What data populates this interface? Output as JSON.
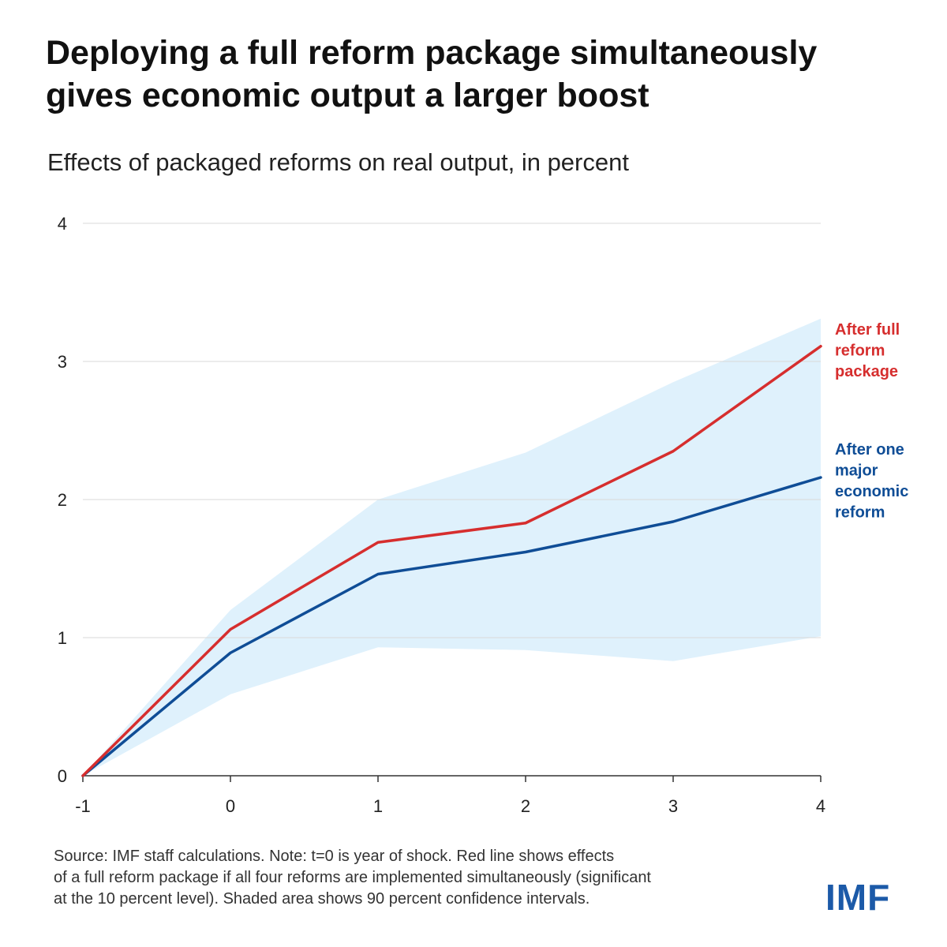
{
  "title_lines": [
    "Deploying a full reform package simultaneously",
    "gives economic output a larger boost"
  ],
  "subtitle": "Effects of packaged reforms on real output, in percent",
  "note_lines": [
    "Source: IMF staff calculations. Note: t=0 is year of shock. Red line shows effects",
    "of a full reform package if all four reforms are implemented simultaneously (significant",
    "at the 10 percent level). Shaded area shows 90 percent confidence intervals."
  ],
  "logo": "IMF",
  "colors": {
    "red": "#d62e2e",
    "blue": "#0f4d96",
    "band": "#dff1fc",
    "grid": "#d9d9d9",
    "axis": "#333333"
  },
  "chart_data": {
    "type": "line",
    "title": "Deploying a full reform package simultaneously gives economic output a larger boost",
    "subtitle": "Effects of packaged reforms on real output, in percent",
    "xlabel": "",
    "ylabel": "",
    "x": [
      -1,
      0,
      1,
      2,
      3,
      4
    ],
    "x_tick_labels": [
      "-1",
      "0",
      "1",
      "2",
      "3",
      "4"
    ],
    "y_tick_labels": [
      "0",
      "1",
      "2",
      "3",
      "4"
    ],
    "y_ticks": [
      0,
      1,
      2,
      3,
      4
    ],
    "xlim": [
      -1,
      4
    ],
    "ylim": [
      0,
      4
    ],
    "grid": true,
    "series": [
      {
        "name": "After full reform package",
        "label_lines": [
          "After full",
          "reform",
          "package"
        ],
        "color": "#d62e2e",
        "values": [
          0,
          1.06,
          1.69,
          1.83,
          2.35,
          3.11
        ]
      },
      {
        "name": "After one major economic reform",
        "label_lines": [
          "After one",
          "major",
          "economic",
          "reform"
        ],
        "color": "#0f4d96",
        "values": [
          0,
          0.89,
          1.46,
          1.62,
          1.84,
          2.16
        ]
      }
    ],
    "confidence_band": {
      "name": "90 percent confidence intervals",
      "lower": [
        0,
        0.59,
        0.93,
        0.91,
        0.83,
        1.01
      ],
      "upper": [
        0,
        1.2,
        2.0,
        2.34,
        2.85,
        3.31
      ]
    }
  }
}
